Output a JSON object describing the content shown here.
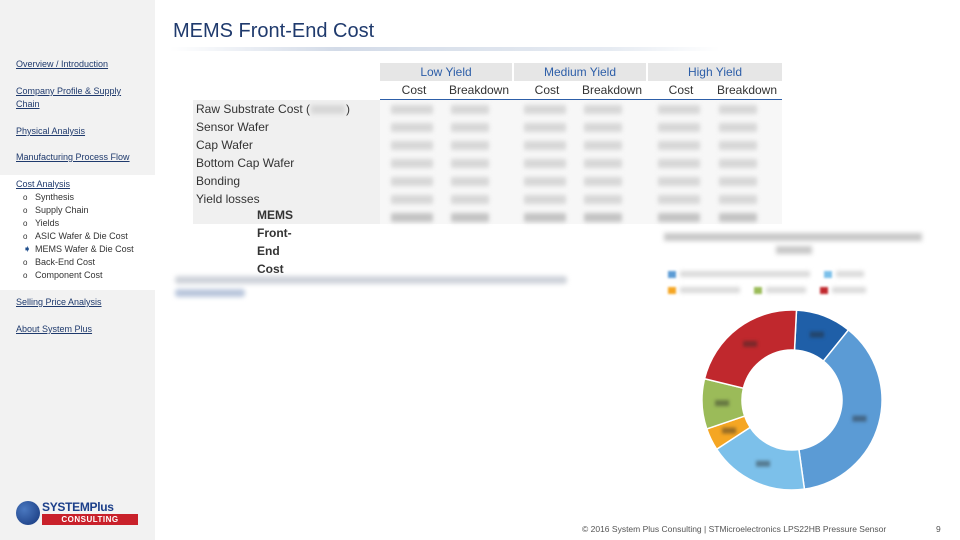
{
  "title": "MEMS Front-End Cost",
  "sidebar": {
    "links": [
      {
        "label": "Overview / Introduction"
      },
      {
        "label": "Company Profile & Supply Chain"
      },
      {
        "label": "Physical Analysis"
      },
      {
        "label": "Manufacturing Process Flow"
      },
      {
        "label": "Cost Analysis"
      },
      {
        "label": "Selling Price Analysis"
      },
      {
        "label": "About System Plus"
      }
    ],
    "cost_analysis_items": [
      {
        "label": "Synthesis",
        "bullet": "o"
      },
      {
        "label": "Supply Chain",
        "bullet": "o"
      },
      {
        "label": "Yields",
        "bullet": "o"
      },
      {
        "label": "ASIC Wafer & Die Cost",
        "bullet": "o"
      },
      {
        "label": "MEMS Wafer & Die Cost",
        "bullet": "➧"
      },
      {
        "label": "Back-End Cost",
        "bullet": "o"
      },
      {
        "label": "Component Cost",
        "bullet": "o"
      }
    ]
  },
  "logo": {
    "top": "SYSTEMPlus",
    "bottom": "CONSULTING"
  },
  "table": {
    "yield_headers": [
      "Low Yield",
      "Medium Yield",
      "High Yield"
    ],
    "sub_headers": [
      "Cost",
      "Breakdown",
      "Cost",
      "Breakdown",
      "Cost",
      "Breakdown"
    ],
    "rows": [
      {
        "label": "Raw Substrate Cost (",
        "suffix": ")"
      },
      {
        "label": "Sensor Wafer"
      },
      {
        "label": "Cap Wafer"
      },
      {
        "label": "Bottom Cap Wafer"
      },
      {
        "label": "Bonding"
      },
      {
        "label": "Yield losses"
      }
    ],
    "total_label": "MEMS Front-End Cost"
  },
  "chart_data": {
    "type": "pie",
    "title": "",
    "donut": true,
    "series": [
      {
        "values": [
          10,
          37,
          18,
          4,
          9,
          22
        ]
      }
    ],
    "colors": [
      "#1f5fa8",
      "#5b9bd5",
      "#7cc0ea",
      "#f5a623",
      "#9bbb59",
      "#c0282d"
    ]
  },
  "footer": {
    "text": "© 2016 System Plus Consulting | STMicroelectronics LPS22HB Pressure Sensor",
    "page": "9"
  }
}
